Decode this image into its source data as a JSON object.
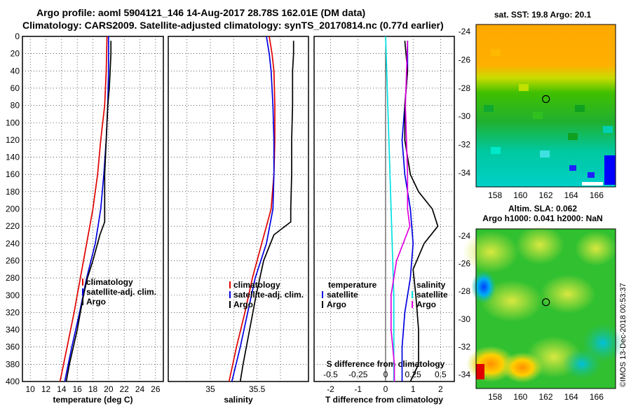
{
  "title": {
    "line1": "Argo profile: aoml 5904121_146 14-Aug-2017 28.78S 162.01E (DM data)",
    "line2": "Climatology: CARS2009. Satellite-adjusted climatology: synTS_20170814.nc (0.77d earlier)"
  },
  "stamp": "©IMOS 13-Dec-2018 00:53:37",
  "colors": {
    "climatology": "#e00000",
    "satellite": "#0000e0",
    "argo": "#000000",
    "t_diff": "#00e0e0",
    "s_diff": "#e000e0"
  },
  "chart_data": [
    {
      "type": "line",
      "id": "temperature",
      "xlabel": "temperature (deg C)",
      "ylabel": "",
      "xlim": [
        9,
        27
      ],
      "ylim": [
        400,
        0
      ],
      "xticks": [
        10,
        12,
        14,
        16,
        18,
        20,
        22,
        24,
        26
      ],
      "yticks": [
        0,
        20,
        40,
        60,
        80,
        100,
        120,
        140,
        160,
        180,
        200,
        220,
        240,
        260,
        280,
        300,
        320,
        340,
        360,
        380,
        400
      ],
      "legend": [
        "climatology",
        "satellite-adj. clim.",
        "Argo"
      ],
      "series": [
        {
          "name": "climatology",
          "depth": [
            0,
            40,
            80,
            120,
            160,
            200,
            240,
            280,
            320,
            360,
            400
          ],
          "values": [
            19.8,
            19.7,
            19.5,
            19.0,
            18.6,
            18.0,
            17.2,
            16.4,
            15.6,
            14.7,
            13.8
          ]
        },
        {
          "name": "satellite-adj. clim.",
          "depth": [
            0,
            40,
            80,
            120,
            160,
            200,
            240,
            280,
            320,
            360,
            400
          ],
          "values": [
            20.0,
            20.0,
            19.9,
            19.7,
            19.4,
            19.0,
            18.3,
            17.2,
            16.3,
            15.3,
            14.4
          ]
        },
        {
          "name": "Argo",
          "depth": [
            5,
            20,
            40,
            60,
            80,
            100,
            120,
            140,
            160,
            180,
            200,
            215,
            230,
            260,
            280,
            300,
            320,
            340,
            360,
            380,
            400
          ],
          "values": [
            20.3,
            20.3,
            20.2,
            20.1,
            19.9,
            19.8,
            19.7,
            19.6,
            19.5,
            19.5,
            19.5,
            19.5,
            18.9,
            18.0,
            17.3,
            16.8,
            16.4,
            16.0,
            15.5,
            15.0,
            14.6
          ]
        }
      ]
    },
    {
      "type": "line",
      "id": "salinity",
      "xlabel": "salinity",
      "xlim": [
        34.55,
        36.05
      ],
      "ylim": [
        400,
        0
      ],
      "xticks": [
        35,
        35.5
      ],
      "legend": [
        "climatology",
        "satellite-adj. clim.",
        "Argo"
      ],
      "series": [
        {
          "name": "climatology",
          "depth": [
            0,
            20,
            40,
            80,
            120,
            160,
            200,
            240,
            280,
            320,
            360,
            400
          ],
          "values": [
            35.63,
            35.66,
            35.68,
            35.69,
            35.69,
            35.68,
            35.65,
            35.55,
            35.45,
            35.37,
            35.28,
            35.2
          ]
        },
        {
          "name": "satellite-adj. clim.",
          "depth": [
            0,
            20,
            40,
            80,
            120,
            160,
            200,
            240,
            280,
            320,
            360,
            400
          ],
          "values": [
            35.6,
            35.63,
            35.65,
            35.67,
            35.68,
            35.68,
            35.67,
            35.6,
            35.48,
            35.4,
            35.32,
            35.23
          ]
        },
        {
          "name": "Argo",
          "depth": [
            5,
            20,
            40,
            80,
            120,
            160,
            200,
            215,
            230,
            260,
            300,
            340,
            380,
            400
          ],
          "values": [
            35.89,
            35.89,
            35.88,
            35.88,
            35.87,
            35.87,
            35.86,
            35.86,
            35.68,
            35.57,
            35.49,
            35.42,
            35.35,
            35.32
          ]
        }
      ]
    },
    {
      "type": "line",
      "id": "differences",
      "xlabel": "T difference from climatology",
      "x2label": "S difference from climatology",
      "xlim": [
        -2.6,
        2.5
      ],
      "x2lim": [
        -0.65,
        0.625
      ],
      "ylim": [
        400,
        0
      ],
      "xticks": [
        -2,
        -1,
        0,
        1,
        2
      ],
      "x2ticks": [
        -0.5,
        -0.25,
        0,
        0.25,
        0.5
      ],
      "x2ticklabels": [
        "-0.5",
        "-0.25",
        "0",
        "0.25",
        "0.5"
      ],
      "legend_left_title": "temperature",
      "legend_right_title": "salinity",
      "legend": [
        "satellite",
        "Argo"
      ],
      "series": [
        {
          "name": "T satellite",
          "axis": "T",
          "depth": [
            5,
            40,
            80,
            120,
            160,
            200,
            240,
            280,
            320,
            360,
            400
          ],
          "values": [
            0.8,
            0.8,
            0.7,
            0.6,
            0.7,
            0.9,
            1.0,
            0.9,
            0.7,
            0.6,
            0.6
          ]
        },
        {
          "name": "T Argo",
          "axis": "T",
          "depth": [
            5,
            40,
            80,
            120,
            160,
            180,
            200,
            220,
            240,
            270,
            300,
            340,
            380,
            400
          ],
          "values": [
            0.7,
            0.8,
            0.7,
            0.7,
            0.9,
            1.2,
            1.7,
            1.9,
            1.4,
            1.0,
            1.1,
            1.2,
            1.2,
            0.9
          ]
        },
        {
          "name": "T diff (cyan)",
          "axis": "T",
          "depth": [
            0,
            100,
            200,
            300,
            400
          ],
          "values": [
            0.0,
            0.1,
            0.2,
            0.3,
            0.3
          ]
        },
        {
          "name": "S difference",
          "axis": "S",
          "depth": [
            5,
            80,
            160,
            200,
            220,
            260,
            300,
            340,
            380,
            400
          ],
          "values": [
            0.2,
            0.18,
            0.2,
            0.2,
            0.22,
            0.1,
            0.05,
            0.05,
            0.08,
            0.08
          ]
        }
      ]
    },
    {
      "type": "heatmap",
      "id": "sst-map",
      "title": "sat. SST: 19.8 Argo: 20.1",
      "xticks": [
        158,
        160,
        162,
        164,
        166
      ],
      "yticks": [
        -24,
        -26,
        -28,
        -30,
        -32,
        -34
      ],
      "xlim": [
        156.5,
        167.5
      ],
      "ylim": [
        -35,
        -23.5
      ],
      "marker": {
        "lon": 162.01,
        "lat": -28.78
      }
    },
    {
      "type": "heatmap",
      "id": "sla-map",
      "title1": "Altim. SLA: 0.062",
      "title2": "Argo h1000: 0.041 h2000: NaN",
      "xticks": [
        158,
        160,
        162,
        164,
        166
      ],
      "yticks": [
        -24,
        -26,
        -28,
        -30,
        -32,
        -34
      ],
      "xlim": [
        156.5,
        167.5
      ],
      "ylim": [
        -35,
        -23.5
      ],
      "marker": {
        "lon": 162.01,
        "lat": -28.78
      }
    }
  ]
}
